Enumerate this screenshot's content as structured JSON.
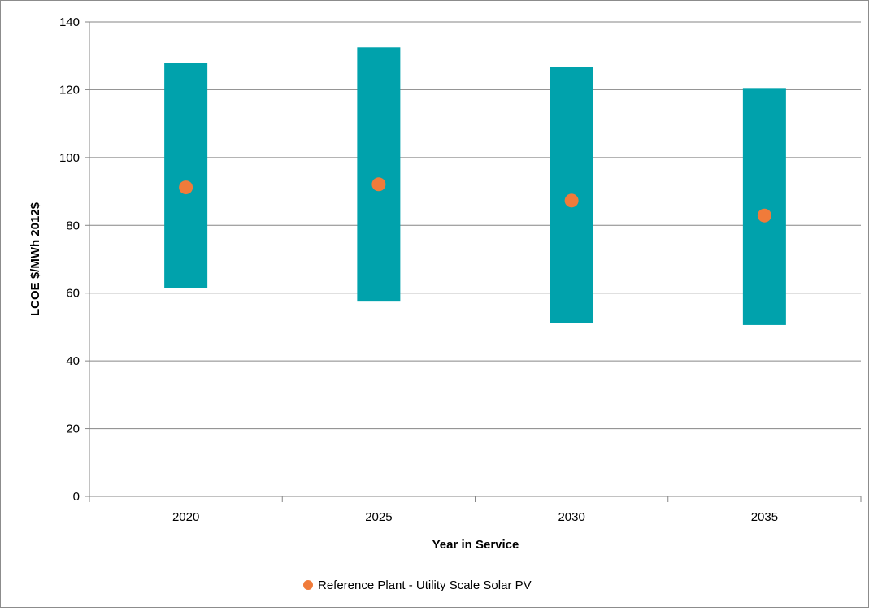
{
  "chart_data": {
    "type": "range-bar-with-markers",
    "categories": [
      "2020",
      "2025",
      "2030",
      "2035"
    ],
    "ranges": [
      {
        "category": "2020",
        "low": 61.5,
        "high": 128
      },
      {
        "category": "2025",
        "low": 57.5,
        "high": 132.5
      },
      {
        "category": "2030",
        "low": 51.3,
        "high": 126.8
      },
      {
        "category": "2035",
        "low": 50.6,
        "high": 120.5
      }
    ],
    "series": [
      {
        "name": "Reference Plant - Utility Scale Solar PV",
        "values": [
          91.2,
          92.1,
          87.3,
          82.9
        ]
      }
    ],
    "xlabel": "Year in Service",
    "ylabel": "LCOE $/MWh 2012$",
    "ylim": [
      0,
      140
    ],
    "yticks": [
      "0",
      "20",
      "40",
      "60",
      "80",
      "100",
      "120",
      "140"
    ],
    "grid": "horizontal",
    "legend": "bottom",
    "colors": {
      "range": "#00A2AC",
      "marker": "#F07B3A",
      "grid": "#868686",
      "axis": "#868686"
    }
  }
}
